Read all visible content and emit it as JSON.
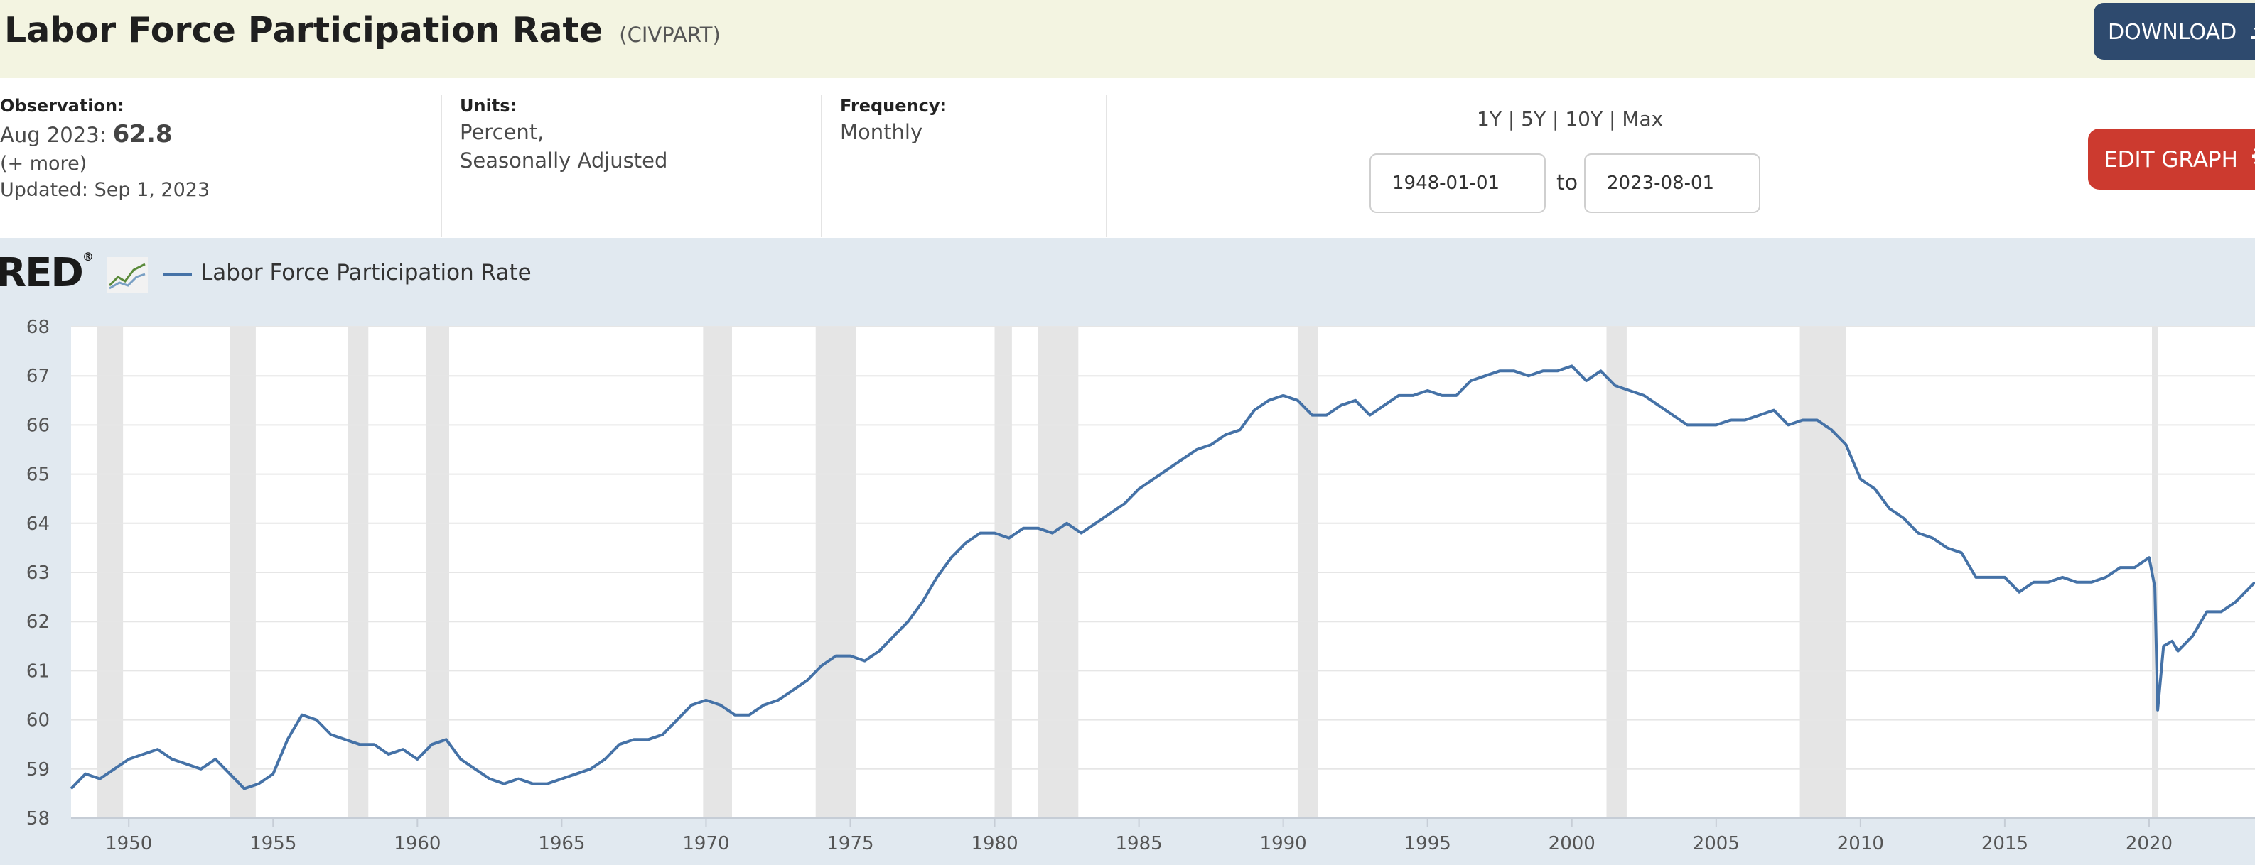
{
  "header": {
    "title": "Labor Force Participation Rate",
    "series_id": "(CIVPART)",
    "download_label": "DOWNLOAD",
    "download_icon": "download-icon",
    "edit_label": "EDIT GRAPH",
    "edit_icon": "gear-icon"
  },
  "meta": {
    "observation_label": "Observation:",
    "observation_date": "Aug 2023:",
    "observation_value": "62.8",
    "more_link": "(+ more)",
    "updated": "Updated: Sep 1, 2023",
    "units_label": "Units:",
    "units_line1": "Percent,",
    "units_line2": "Seasonally Adjusted",
    "frequency_label": "Frequency:",
    "frequency_value": "Monthly"
  },
  "range": {
    "r1y": "1Y",
    "r5y": "5Y",
    "r10y": "10Y",
    "rmax": "Max",
    "separator": "|",
    "start": "1948-01-01",
    "to": "to",
    "end": "2023-08-01"
  },
  "legend": {
    "logo_text": "RED",
    "logo_reg": "®",
    "series_label": "Labor Force Participation Rate",
    "series_color": "#4572a7"
  },
  "chart_data": {
    "type": "line",
    "title": "Labor Force Participation Rate",
    "units": "Percent, Seasonally Adjusted",
    "x_range": [
      1948.0,
      2023.67
    ],
    "ylim": [
      58,
      68
    ],
    "yticks": [
      58,
      59,
      60,
      61,
      62,
      63,
      64,
      65,
      66,
      67,
      68
    ],
    "xticks": [
      1950,
      1955,
      1960,
      1965,
      1970,
      1975,
      1980,
      1985,
      1990,
      1995,
      2000,
      2005,
      2010,
      2015,
      2020
    ],
    "recessions": [
      [
        1948.9,
        1949.8
      ],
      [
        1953.5,
        1954.4
      ],
      [
        1957.6,
        1958.3
      ],
      [
        1960.3,
        1961.1
      ],
      [
        1969.9,
        1970.9
      ],
      [
        1973.8,
        1975.2
      ],
      [
        1980.0,
        1980.6
      ],
      [
        1981.5,
        1982.9
      ],
      [
        1990.5,
        1991.2
      ],
      [
        2001.2,
        2001.9
      ],
      [
        2007.9,
        2009.5
      ],
      [
        2020.1,
        2020.3
      ]
    ],
    "series": [
      {
        "name": "Labor Force Participation Rate",
        "color": "#4572a7",
        "points": [
          [
            1948.0,
            58.6
          ],
          [
            1948.5,
            58.9
          ],
          [
            1949.0,
            58.8
          ],
          [
            1949.5,
            59.0
          ],
          [
            1950.0,
            59.2
          ],
          [
            1950.5,
            59.3
          ],
          [
            1951.0,
            59.4
          ],
          [
            1951.5,
            59.2
          ],
          [
            1952.0,
            59.1
          ],
          [
            1952.5,
            59.0
          ],
          [
            1953.0,
            59.2
          ],
          [
            1953.5,
            58.9
          ],
          [
            1954.0,
            58.6
          ],
          [
            1954.5,
            58.7
          ],
          [
            1955.0,
            58.9
          ],
          [
            1955.5,
            59.6
          ],
          [
            1956.0,
            60.1
          ],
          [
            1956.5,
            60.0
          ],
          [
            1957.0,
            59.7
          ],
          [
            1957.5,
            59.6
          ],
          [
            1958.0,
            59.5
          ],
          [
            1958.5,
            59.5
          ],
          [
            1959.0,
            59.3
          ],
          [
            1959.5,
            59.4
          ],
          [
            1960.0,
            59.2
          ],
          [
            1960.5,
            59.5
          ],
          [
            1961.0,
            59.6
          ],
          [
            1961.5,
            59.2
          ],
          [
            1962.0,
            59.0
          ],
          [
            1962.5,
            58.8
          ],
          [
            1963.0,
            58.7
          ],
          [
            1963.5,
            58.8
          ],
          [
            1964.0,
            58.7
          ],
          [
            1964.5,
            58.7
          ],
          [
            1965.0,
            58.8
          ],
          [
            1965.5,
            58.9
          ],
          [
            1966.0,
            59.0
          ],
          [
            1966.5,
            59.2
          ],
          [
            1967.0,
            59.5
          ],
          [
            1967.5,
            59.6
          ],
          [
            1968.0,
            59.6
          ],
          [
            1968.5,
            59.7
          ],
          [
            1969.0,
            60.0
          ],
          [
            1969.5,
            60.3
          ],
          [
            1970.0,
            60.4
          ],
          [
            1970.5,
            60.3
          ],
          [
            1971.0,
            60.1
          ],
          [
            1971.5,
            60.1
          ],
          [
            1972.0,
            60.3
          ],
          [
            1972.5,
            60.4
          ],
          [
            1973.0,
            60.6
          ],
          [
            1973.5,
            60.8
          ],
          [
            1974.0,
            61.1
          ],
          [
            1974.5,
            61.3
          ],
          [
            1975.0,
            61.3
          ],
          [
            1975.5,
            61.2
          ],
          [
            1976.0,
            61.4
          ],
          [
            1976.5,
            61.7
          ],
          [
            1977.0,
            62.0
          ],
          [
            1977.5,
            62.4
          ],
          [
            1978.0,
            62.9
          ],
          [
            1978.5,
            63.3
          ],
          [
            1979.0,
            63.6
          ],
          [
            1979.5,
            63.8
          ],
          [
            1980.0,
            63.8
          ],
          [
            1980.5,
            63.7
          ],
          [
            1981.0,
            63.9
          ],
          [
            1981.5,
            63.9
          ],
          [
            1982.0,
            63.8
          ],
          [
            1982.5,
            64.0
          ],
          [
            1983.0,
            63.8
          ],
          [
            1983.5,
            64.0
          ],
          [
            1984.0,
            64.2
          ],
          [
            1984.5,
            64.4
          ],
          [
            1985.0,
            64.7
          ],
          [
            1985.5,
            64.9
          ],
          [
            1986.0,
            65.1
          ],
          [
            1986.5,
            65.3
          ],
          [
            1987.0,
            65.5
          ],
          [
            1987.5,
            65.6
          ],
          [
            1988.0,
            65.8
          ],
          [
            1988.5,
            65.9
          ],
          [
            1989.0,
            66.3
          ],
          [
            1989.5,
            66.5
          ],
          [
            1990.0,
            66.6
          ],
          [
            1990.5,
            66.5
          ],
          [
            1991.0,
            66.2
          ],
          [
            1991.5,
            66.2
          ],
          [
            1992.0,
            66.4
          ],
          [
            1992.5,
            66.5
          ],
          [
            1993.0,
            66.2
          ],
          [
            1993.5,
            66.4
          ],
          [
            1994.0,
            66.6
          ],
          [
            1994.5,
            66.6
          ],
          [
            1995.0,
            66.7
          ],
          [
            1995.5,
            66.6
          ],
          [
            1996.0,
            66.6
          ],
          [
            1996.5,
            66.9
          ],
          [
            1997.0,
            67.0
          ],
          [
            1997.5,
            67.1
          ],
          [
            1998.0,
            67.1
          ],
          [
            1998.5,
            67.0
          ],
          [
            1999.0,
            67.1
          ],
          [
            1999.5,
            67.1
          ],
          [
            2000.0,
            67.2
          ],
          [
            2000.5,
            66.9
          ],
          [
            2001.0,
            67.1
          ],
          [
            2001.5,
            66.8
          ],
          [
            2002.0,
            66.7
          ],
          [
            2002.5,
            66.6
          ],
          [
            2003.0,
            66.4
          ],
          [
            2003.5,
            66.2
          ],
          [
            2004.0,
            66.0
          ],
          [
            2004.5,
            66.0
          ],
          [
            2005.0,
            66.0
          ],
          [
            2005.5,
            66.1
          ],
          [
            2006.0,
            66.1
          ],
          [
            2006.5,
            66.2
          ],
          [
            2007.0,
            66.3
          ],
          [
            2007.5,
            66.0
          ],
          [
            2008.0,
            66.1
          ],
          [
            2008.5,
            66.1
          ],
          [
            2009.0,
            65.9
          ],
          [
            2009.5,
            65.6
          ],
          [
            2010.0,
            64.9
          ],
          [
            2010.5,
            64.7
          ],
          [
            2011.0,
            64.3
          ],
          [
            2011.5,
            64.1
          ],
          [
            2012.0,
            63.8
          ],
          [
            2012.5,
            63.7
          ],
          [
            2013.0,
            63.5
          ],
          [
            2013.5,
            63.4
          ],
          [
            2014.0,
            62.9
          ],
          [
            2014.5,
            62.9
          ],
          [
            2015.0,
            62.9
          ],
          [
            2015.5,
            62.6
          ],
          [
            2016.0,
            62.8
          ],
          [
            2016.5,
            62.8
          ],
          [
            2017.0,
            62.9
          ],
          [
            2017.5,
            62.8
          ],
          [
            2018.0,
            62.8
          ],
          [
            2018.5,
            62.9
          ],
          [
            2019.0,
            63.1
          ],
          [
            2019.5,
            63.1
          ],
          [
            2020.0,
            63.3
          ],
          [
            2020.2,
            62.7
          ],
          [
            2020.3,
            60.2
          ],
          [
            2020.5,
            61.5
          ],
          [
            2020.8,
            61.6
          ],
          [
            2021.0,
            61.4
          ],
          [
            2021.5,
            61.7
          ],
          [
            2022.0,
            62.2
          ],
          [
            2022.5,
            62.2
          ],
          [
            2023.0,
            62.4
          ],
          [
            2023.67,
            62.8
          ]
        ]
      }
    ]
  }
}
